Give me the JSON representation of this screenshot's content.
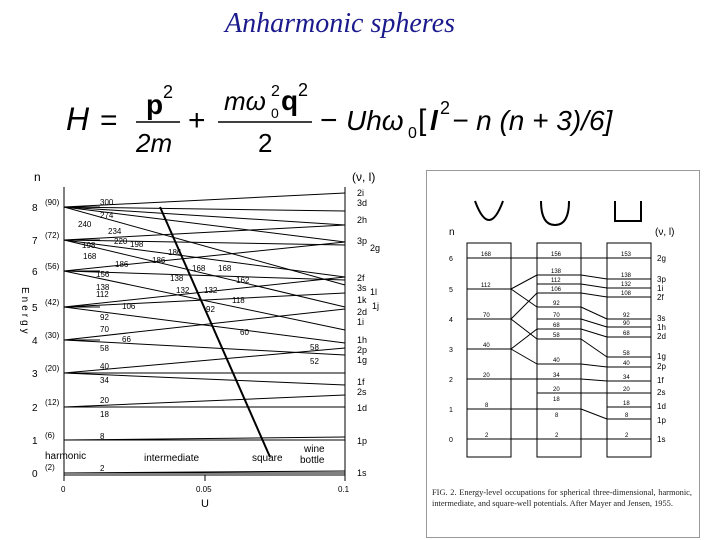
{
  "slide": {
    "title": "Anharmonic spheres"
  },
  "formula": {
    "H": "H",
    "eq": "=",
    "p": "p",
    "p_exp": "2",
    "two_m": "2m",
    "plus": "+",
    "m_omega": "mω",
    "omega_sub": "0",
    "omega_exp": "2",
    "q": "q",
    "q_exp": "2",
    "two": "2",
    "minus": "−",
    "U_h_omega": "Uhω",
    "sub0": "0",
    "bracket": "[",
    "l": "l",
    "l_exp": "2",
    "rest": "− n (n + 3)/6]"
  },
  "left_figure": {
    "y_title_n": "n",
    "y_title_nl": "(ν, l)",
    "energy_label": "Energy",
    "x_label": "U",
    "x_ticks": [
      "0",
      "0.05",
      "0.1"
    ],
    "n_ticks": [
      "8",
      "7",
      "6",
      "5",
      "4",
      "3",
      "2",
      "1",
      "0"
    ],
    "occupations": [
      "(90)",
      "(72)",
      "(56)",
      "(42)",
      "(30)",
      "(20)",
      "(12)",
      "(6)",
      "(2)"
    ],
    "state_labels": [
      "2i",
      "3d",
      "2h",
      "3p",
      "2g",
      "2f",
      "3s",
      "1l",
      "1k",
      "1j",
      "2d",
      "1i",
      "1h",
      "2p",
      "1g",
      "1f",
      "2s",
      "1d",
      "1p",
      "1s"
    ],
    "numbers": [
      "300",
      "274",
      "240",
      "234",
      "198",
      "220",
      "198",
      "168",
      "186",
      "186",
      "186",
      "156",
      "138",
      "168",
      "168",
      "138",
      "132",
      "132",
      "112",
      "162",
      "118",
      "106",
      "92",
      "92",
      "70",
      "66",
      "60",
      "58",
      "58",
      "52",
      "40",
      "34",
      "20",
      "18",
      "8",
      "2"
    ],
    "region_labels": [
      "harmonic",
      "intermediate",
      "square",
      "wine",
      "bottle"
    ]
  },
  "right_figure": {
    "n_label": "n",
    "nl_label": "(ν, l)",
    "n_ticks": [
      "6",
      "5",
      "4",
      "3",
      "2",
      "1",
      "0"
    ],
    "col1_numbers": [
      "168",
      "112",
      "70",
      "40",
      "20",
      "8",
      "2"
    ],
    "col2_numbers": [
      "156",
      "138",
      "112",
      "106",
      "92",
      "70",
      "68",
      "58",
      "40",
      "34",
      "20",
      "18",
      "8",
      "2"
    ],
    "col3_numbers": [
      "153",
      "138",
      "132",
      "108",
      "92",
      "90",
      "68",
      "58",
      "40",
      "34",
      "20",
      "18",
      "8",
      "2"
    ],
    "state_labels": [
      "2g",
      "3p",
      "1i",
      "2f",
      "3s",
      "1h",
      "2d",
      "1g",
      "2p",
      "1f",
      "2s",
      "1d",
      "1p",
      "1s"
    ]
  },
  "caption": {
    "text": "FIG. 2. Energy-level occupations for spherical three-dimensional, harmonic, intermediate, and square-well potentials. After Mayer and Jensen, 1955."
  }
}
